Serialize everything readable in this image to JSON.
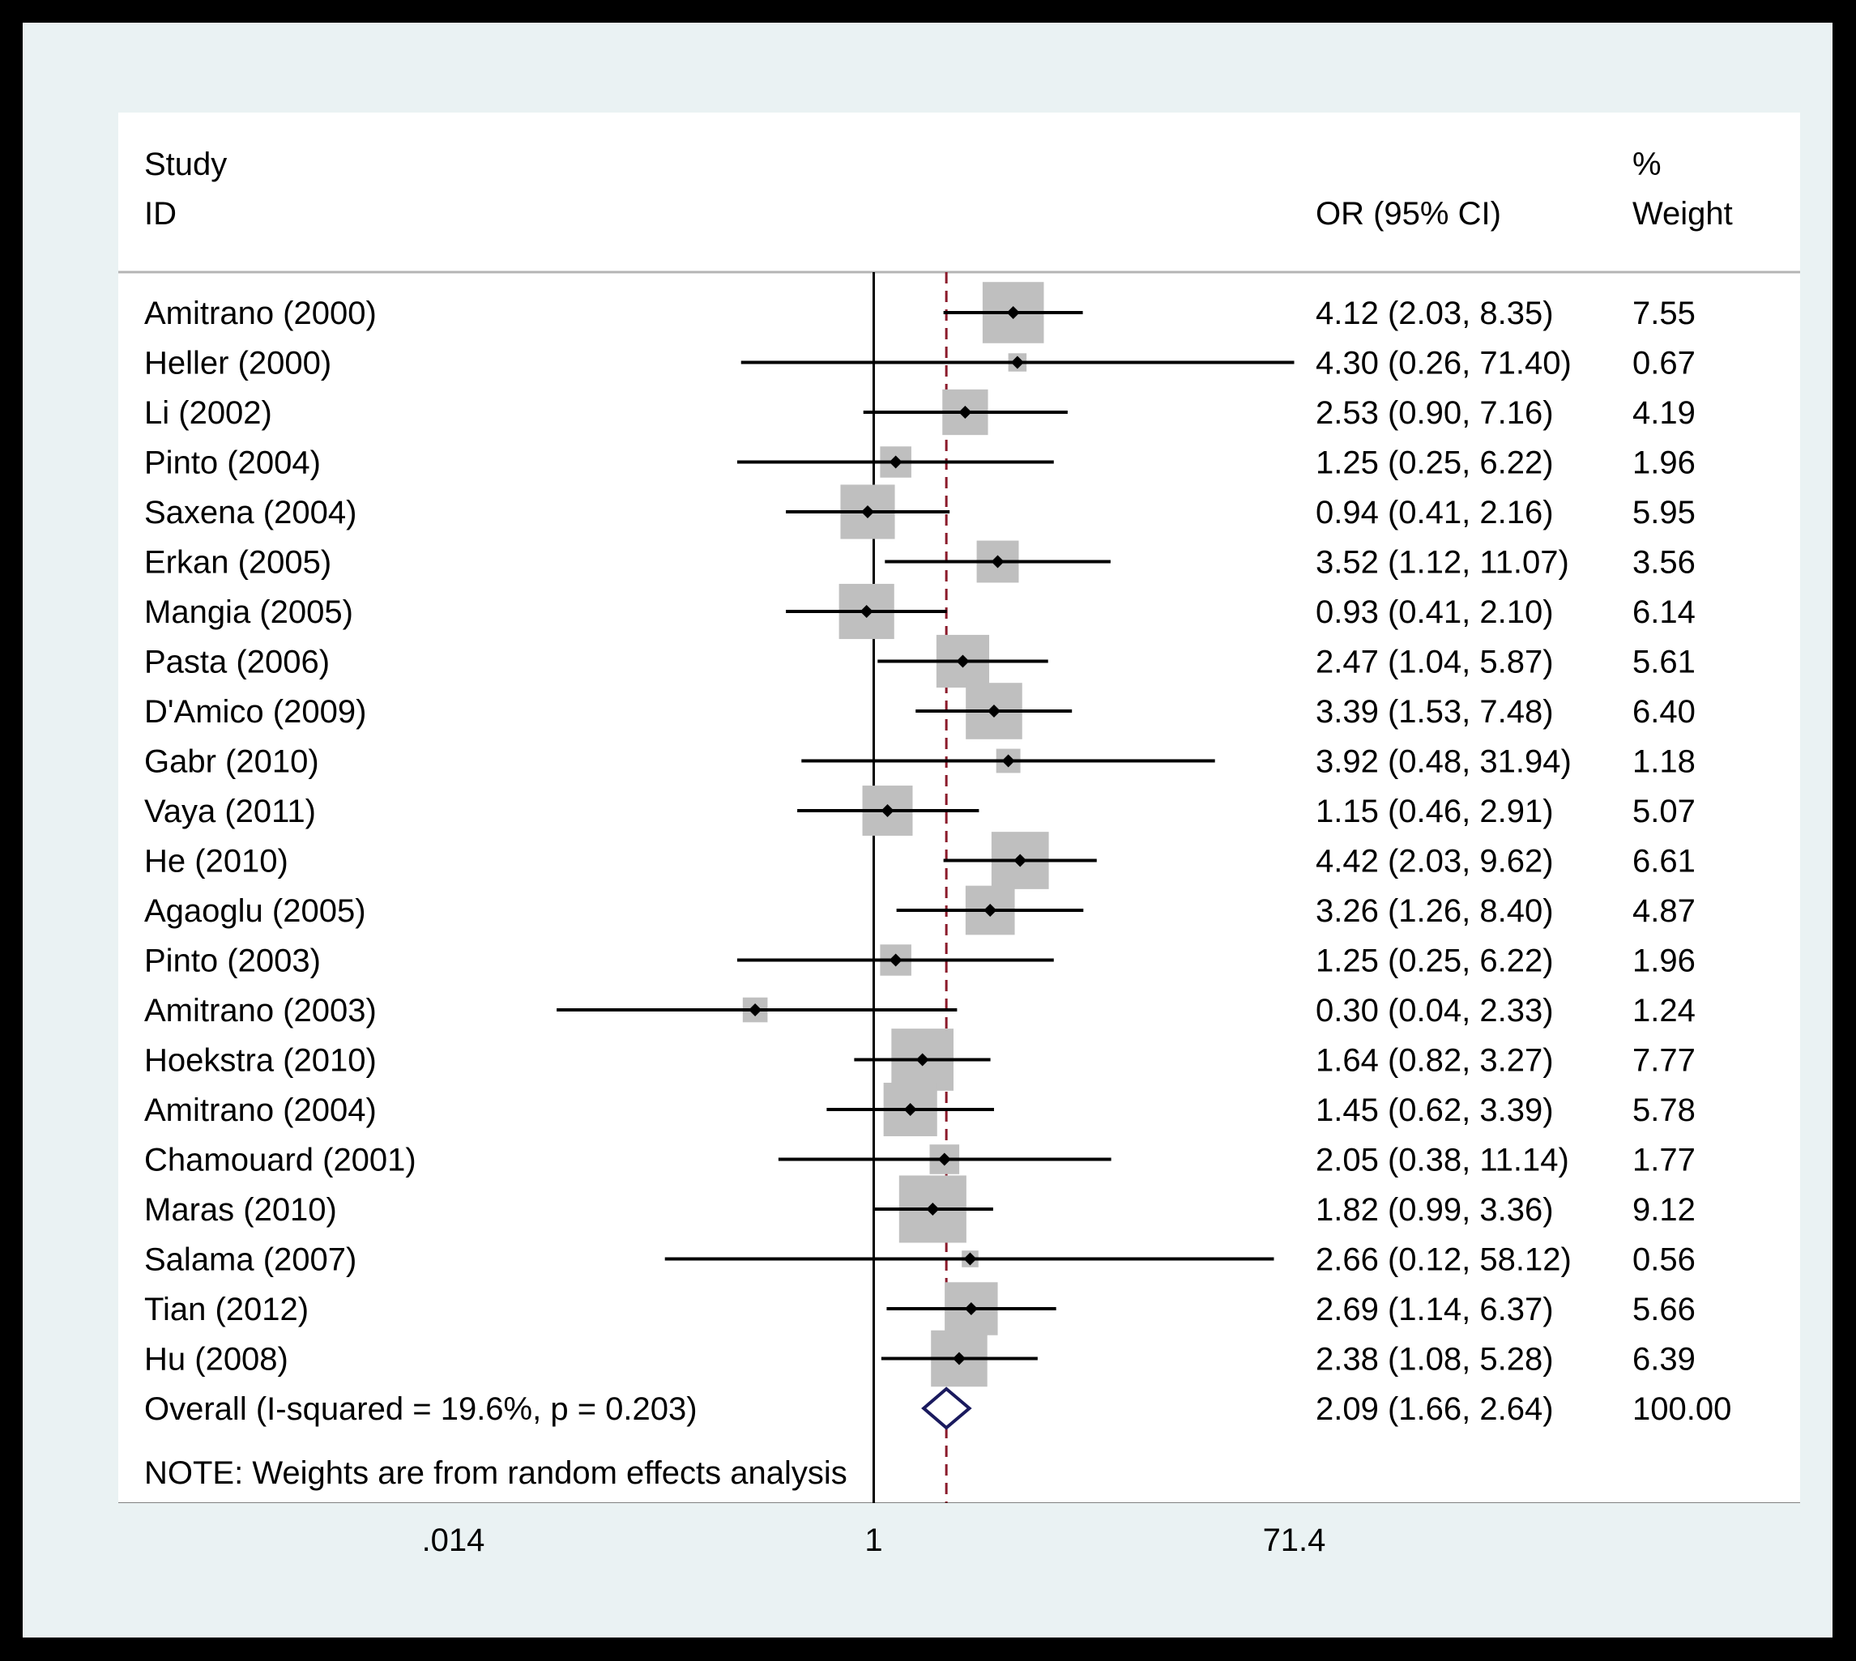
{
  "chart_data": {
    "type": "forest",
    "header": {
      "study_line1": "Study",
      "study_line2": "ID",
      "effect_label": "OR (95% CI)",
      "weight_line1": "%",
      "weight_line2": "Weight"
    },
    "studies": [
      {
        "id": "Amitrano (2000)",
        "or": 4.12,
        "lo": 2.03,
        "hi": 8.35,
        "ci_text": "4.12 (2.03, 8.35)",
        "weight": 7.55,
        "weight_text": "7.55"
      },
      {
        "id": "Heller (2000)",
        "or": 4.3,
        "lo": 0.26,
        "hi": 71.4,
        "ci_text": "4.30 (0.26, 71.40)",
        "weight": 0.67,
        "weight_text": "0.67"
      },
      {
        "id": "Li (2002)",
        "or": 2.53,
        "lo": 0.9,
        "hi": 7.16,
        "ci_text": "2.53 (0.90, 7.16)",
        "weight": 4.19,
        "weight_text": "4.19"
      },
      {
        "id": "Pinto (2004)",
        "or": 1.25,
        "lo": 0.25,
        "hi": 6.22,
        "ci_text": "1.25 (0.25, 6.22)",
        "weight": 1.96,
        "weight_text": "1.96"
      },
      {
        "id": "Saxena (2004)",
        "or": 0.94,
        "lo": 0.41,
        "hi": 2.16,
        "ci_text": "0.94 (0.41, 2.16)",
        "weight": 5.95,
        "weight_text": "5.95"
      },
      {
        "id": "Erkan (2005)",
        "or": 3.52,
        "lo": 1.12,
        "hi": 11.07,
        "ci_text": "3.52 (1.12, 11.07)",
        "weight": 3.56,
        "weight_text": "3.56"
      },
      {
        "id": "Mangia (2005)",
        "or": 0.93,
        "lo": 0.41,
        "hi": 2.1,
        "ci_text": "0.93 (0.41, 2.10)",
        "weight": 6.14,
        "weight_text": "6.14"
      },
      {
        "id": "Pasta (2006)",
        "or": 2.47,
        "lo": 1.04,
        "hi": 5.87,
        "ci_text": "2.47 (1.04, 5.87)",
        "weight": 5.61,
        "weight_text": "5.61"
      },
      {
        "id": "D'Amico (2009)",
        "or": 3.39,
        "lo": 1.53,
        "hi": 7.48,
        "ci_text": "3.39 (1.53, 7.48)",
        "weight": 6.4,
        "weight_text": "6.40"
      },
      {
        "id": "Gabr (2010)",
        "or": 3.92,
        "lo": 0.48,
        "hi": 31.94,
        "ci_text": "3.92 (0.48, 31.94)",
        "weight": 1.18,
        "weight_text": "1.18"
      },
      {
        "id": "Vaya (2011)",
        "or": 1.15,
        "lo": 0.46,
        "hi": 2.91,
        "ci_text": "1.15 (0.46, 2.91)",
        "weight": 5.07,
        "weight_text": "5.07"
      },
      {
        "id": "He (2010)",
        "or": 4.42,
        "lo": 2.03,
        "hi": 9.62,
        "ci_text": "4.42 (2.03, 9.62)",
        "weight": 6.61,
        "weight_text": "6.61"
      },
      {
        "id": "Agaoglu (2005)",
        "or": 3.26,
        "lo": 1.26,
        "hi": 8.4,
        "ci_text": "3.26 (1.26, 8.40)",
        "weight": 4.87,
        "weight_text": "4.87"
      },
      {
        "id": "Pinto (2003)",
        "or": 1.25,
        "lo": 0.25,
        "hi": 6.22,
        "ci_text": "1.25 (0.25, 6.22)",
        "weight": 1.96,
        "weight_text": "1.96"
      },
      {
        "id": "Amitrano (2003)",
        "or": 0.3,
        "lo": 0.04,
        "hi": 2.33,
        "ci_text": "0.30 (0.04, 2.33)",
        "weight": 1.24,
        "weight_text": "1.24"
      },
      {
        "id": "Hoekstra (2010)",
        "or": 1.64,
        "lo": 0.82,
        "hi": 3.27,
        "ci_text": "1.64 (0.82, 3.27)",
        "weight": 7.77,
        "weight_text": "7.77"
      },
      {
        "id": "Amitrano (2004)",
        "or": 1.45,
        "lo": 0.62,
        "hi": 3.39,
        "ci_text": "1.45 (0.62, 3.39)",
        "weight": 5.78,
        "weight_text": "5.78"
      },
      {
        "id": "Chamouard (2001)",
        "or": 2.05,
        "lo": 0.38,
        "hi": 11.14,
        "ci_text": "2.05 (0.38, 11.14)",
        "weight": 1.77,
        "weight_text": "1.77"
      },
      {
        "id": "Maras (2010)",
        "or": 1.82,
        "lo": 0.99,
        "hi": 3.36,
        "ci_text": "1.82 (0.99, 3.36)",
        "weight": 9.12,
        "weight_text": "9.12"
      },
      {
        "id": "Salama  (2007)",
        "or": 2.66,
        "lo": 0.12,
        "hi": 58.12,
        "ci_text": "2.66 (0.12, 58.12)",
        "weight": 0.56,
        "weight_text": "0.56"
      },
      {
        "id": "Tian (2012)",
        "or": 2.69,
        "lo": 1.14,
        "hi": 6.37,
        "ci_text": "2.69 (1.14, 6.37)",
        "weight": 5.66,
        "weight_text": "5.66"
      },
      {
        "id": "Hu (2008)",
        "or": 2.38,
        "lo": 1.08,
        "hi": 5.28,
        "ci_text": "2.38 (1.08, 5.28)",
        "weight": 6.39,
        "weight_text": "6.39"
      }
    ],
    "overall": {
      "label": "Overall  (I-squared = 19.6%, p = 0.203)",
      "or": 2.09,
      "lo": 1.66,
      "hi": 2.64,
      "ci_text": "2.09 (1.66, 2.64)",
      "weight_text": "100.00"
    },
    "note": "NOTE: Weights are from random effects analysis",
    "x_axis": {
      "scale": "log",
      "range": [
        0.014,
        71.4
      ],
      "ticks": [
        0.014,
        1,
        71.4
      ],
      "tick_labels": [
        ".014",
        "1",
        "71.4"
      ],
      "null_line": 1
    },
    "colors": {
      "box": "#bfbfbf",
      "overall_diamond": "#1a1a5e",
      "overall_line": "#8b1a2b"
    }
  }
}
